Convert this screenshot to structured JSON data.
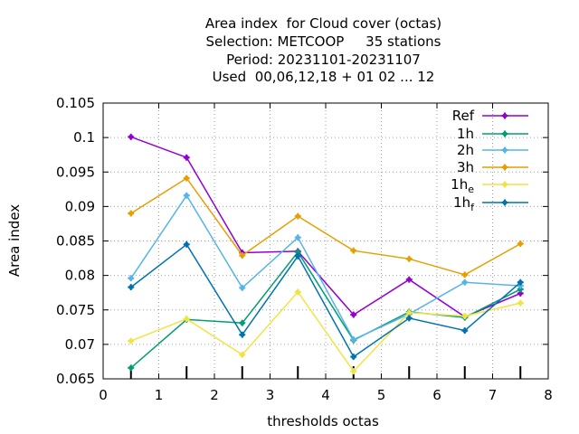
{
  "title_lines": [
    "Area index  for Cloud cover (octas)",
    "Selection: METCOOP     35 stations",
    "Period: 20231101-20231107",
    "Used  00,06,12,18 + 01 02 ... 12"
  ],
  "chart_data": {
    "type": "line",
    "xlabel": "thresholds octas",
    "ylabel": "Area index",
    "xlim": [
      0,
      8
    ],
    "ylim": [
      0.065,
      0.105
    ],
    "xticks": [
      "0",
      "1",
      "2",
      "3",
      "4",
      "5",
      "6",
      "7",
      "8"
    ],
    "yticks": [
      "0.065",
      "0.07",
      "0.075",
      "0.08",
      "0.085",
      "0.09",
      "0.095",
      "0.1",
      "0.105"
    ],
    "grid": true,
    "legend_position": "top-right",
    "x": [
      0.5,
      1.5,
      2.5,
      3.5,
      4.5,
      5.5,
      6.5,
      7.5
    ],
    "series": [
      {
        "name": "Ref",
        "label_main": "Ref",
        "label_sub": "",
        "color": "#9400D3",
        "values": [
          0.1001,
          0.0971,
          0.0833,
          0.0835,
          0.0743,
          0.0794,
          0.074,
          0.0774
        ]
      },
      {
        "name": "1h",
        "label_main": "1h",
        "label_sub": "",
        "color": "#009E73",
        "values": [
          0.0666,
          0.0736,
          0.0731,
          0.0834,
          0.0706,
          0.0747,
          0.0739,
          0.078
        ]
      },
      {
        "name": "2h",
        "label_main": "2h",
        "label_sub": "",
        "color": "#56B4E9",
        "values": [
          0.0796,
          0.0916,
          0.0782,
          0.0855,
          0.0707,
          0.0744,
          0.079,
          0.0785
        ]
      },
      {
        "name": "3h",
        "label_main": "3h",
        "label_sub": "",
        "color": "#E69F00",
        "values": [
          0.089,
          0.0941,
          0.0829,
          0.0886,
          0.0836,
          0.0824,
          0.0801,
          0.0846
        ]
      },
      {
        "name": "1he",
        "label_main": "1h",
        "label_sub": "e",
        "color": "#F0E442",
        "values": [
          0.0705,
          0.0737,
          0.0685,
          0.0776,
          0.0661,
          0.0746,
          0.0741,
          0.076
        ]
      },
      {
        "name": "1hf",
        "label_main": "1h",
        "label_sub": "f",
        "color": "#0072B2",
        "values": [
          0.0783,
          0.0845,
          0.0714,
          0.0828,
          0.0682,
          0.0738,
          0.072,
          0.079
        ]
      }
    ]
  }
}
